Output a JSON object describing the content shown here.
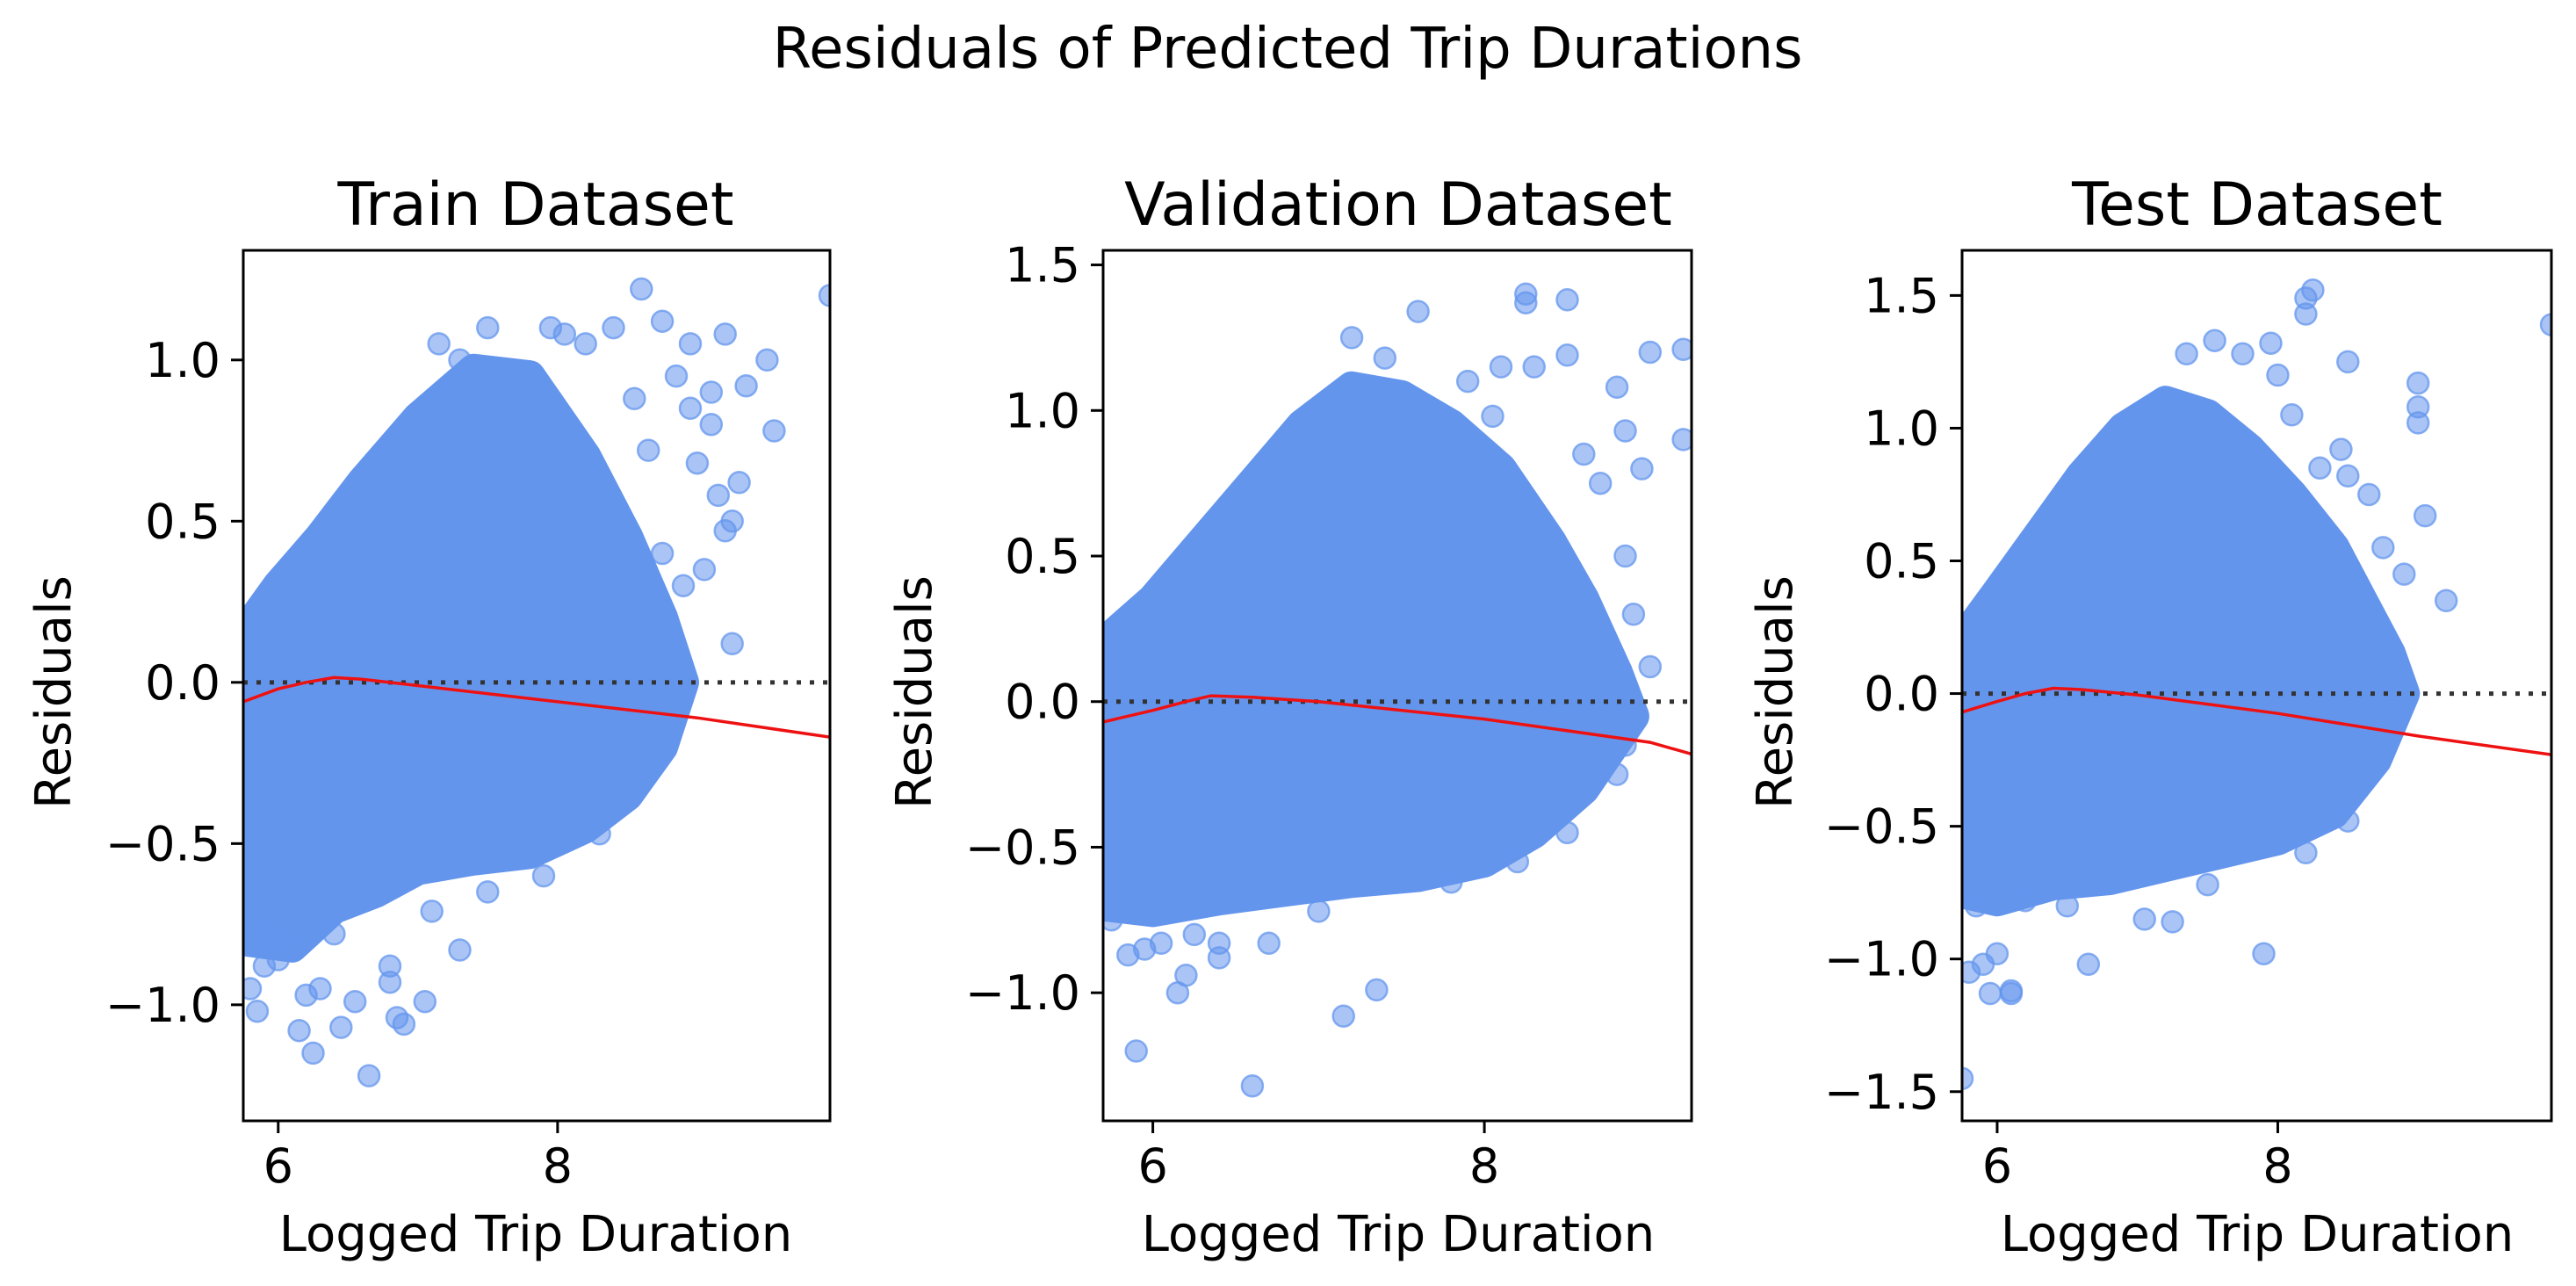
{
  "figure": {
    "title": "Residuals of Predicted Trip Durations",
    "point_color": "#6495ED",
    "trend_color": "#FF0000",
    "zero_line_color": "#333333"
  },
  "chart_data": [
    {
      "type": "scatter",
      "title": "Train Dataset",
      "xlabel": "Logged Trip Duration",
      "ylabel": "Residuals",
      "xlim": [
        5.75,
        9.95
      ],
      "ylim": [
        -1.36,
        1.34
      ],
      "xticks": [
        {
          "v": 6,
          "label": "6"
        },
        {
          "v": 8,
          "label": "8"
        }
      ],
      "yticks": [
        {
          "v": -1.0,
          "label": "−1.0"
        },
        {
          "v": -0.5,
          "label": "−0.5"
        },
        {
          "v": 0.0,
          "label": "0.0"
        },
        {
          "v": 0.5,
          "label": "0.5"
        },
        {
          "v": 1.0,
          "label": "1.0"
        }
      ],
      "bulk_upper": [
        [
          5.75,
          0.15
        ],
        [
          6.0,
          0.3
        ],
        [
          6.3,
          0.45
        ],
        [
          6.6,
          0.62
        ],
        [
          7.0,
          0.82
        ],
        [
          7.4,
          0.97
        ],
        [
          7.8,
          0.95
        ],
        [
          8.2,
          0.7
        ],
        [
          8.5,
          0.45
        ],
        [
          8.75,
          0.2
        ],
        [
          8.9,
          0.0
        ]
      ],
      "bulk_lower": [
        [
          8.9,
          0.0
        ],
        [
          8.75,
          -0.2
        ],
        [
          8.5,
          -0.35
        ],
        [
          8.2,
          -0.45
        ],
        [
          7.8,
          -0.53
        ],
        [
          7.4,
          -0.55
        ],
        [
          7.0,
          -0.58
        ],
        [
          6.7,
          -0.65
        ],
        [
          6.4,
          -0.7
        ],
        [
          6.1,
          -0.82
        ],
        [
          5.75,
          -0.8
        ]
      ],
      "trend": [
        [
          5.75,
          -0.06
        ],
        [
          6.0,
          -0.02
        ],
        [
          6.2,
          0.0
        ],
        [
          6.4,
          0.015
        ],
        [
          6.6,
          0.01
        ],
        [
          7.0,
          -0.01
        ],
        [
          8.0,
          -0.06
        ],
        [
          9.0,
          -0.11
        ],
        [
          9.95,
          -0.17
        ]
      ],
      "outliers": [
        [
          9.5,
          1.0
        ],
        [
          9.35,
          0.92
        ],
        [
          9.2,
          1.08
        ],
        [
          9.1,
          0.9
        ],
        [
          9.55,
          0.78
        ],
        [
          9.3,
          0.62
        ],
        [
          9.25,
          0.5
        ],
        [
          9.15,
          0.58
        ],
        [
          9.0,
          0.68
        ],
        [
          9.1,
          0.8
        ],
        [
          9.2,
          0.47
        ],
        [
          9.25,
          0.12
        ],
        [
          8.95,
          1.05
        ],
        [
          8.75,
          1.12
        ],
        [
          8.6,
          1.22
        ],
        [
          8.4,
          1.1
        ],
        [
          8.2,
          1.05
        ],
        [
          8.85,
          0.95
        ],
        [
          8.95,
          0.85
        ],
        [
          8.55,
          0.88
        ],
        [
          8.65,
          0.72
        ],
        [
          9.05,
          0.35
        ],
        [
          8.9,
          0.3
        ],
        [
          9.95,
          1.2
        ],
        [
          7.5,
          1.1
        ],
        [
          7.95,
          1.1
        ],
        [
          8.05,
          1.08
        ],
        [
          7.15,
          1.05
        ],
        [
          7.3,
          1.0
        ],
        [
          8.75,
          0.4
        ],
        [
          6.65,
          -1.22
        ],
        [
          6.25,
          -1.15
        ],
        [
          6.15,
          -1.08
        ],
        [
          6.45,
          -1.07
        ],
        [
          6.55,
          -0.99
        ],
        [
          6.85,
          -1.04
        ],
        [
          6.9,
          -1.06
        ],
        [
          7.05,
          -0.99
        ],
        [
          7.3,
          -0.83
        ],
        [
          6.8,
          -0.88
        ],
        [
          6.8,
          -0.93
        ],
        [
          6.3,
          -0.95
        ],
        [
          6.2,
          -0.97
        ],
        [
          5.85,
          -1.02
        ],
        [
          5.9,
          -0.88
        ],
        [
          6.0,
          -0.86
        ],
        [
          6.1,
          -0.82
        ],
        [
          5.8,
          -0.95
        ],
        [
          5.95,
          -0.8
        ],
        [
          6.4,
          -0.78
        ],
        [
          7.1,
          -0.71
        ],
        [
          7.5,
          -0.65
        ],
        [
          7.9,
          -0.6
        ],
        [
          8.3,
          -0.47
        ],
        [
          5.8,
          -0.75
        ]
      ]
    },
    {
      "type": "scatter",
      "title": "Validation Dataset",
      "xlabel": "Logged Trip Duration",
      "ylabel": "Residuals",
      "xlim": [
        5.7,
        9.25
      ],
      "ylim": [
        -1.44,
        1.55
      ],
      "xticks": [
        {
          "v": 6,
          "label": "6"
        },
        {
          "v": 8,
          "label": "8"
        }
      ],
      "yticks": [
        {
          "v": -1.0,
          "label": "−1.0"
        },
        {
          "v": -0.5,
          "label": "−0.5"
        },
        {
          "v": 0.0,
          "label": "0.0"
        },
        {
          "v": 0.5,
          "label": "0.5"
        },
        {
          "v": 1.0,
          "label": "1.0"
        },
        {
          "v": 1.5,
          "label": "1.5"
        }
      ],
      "bulk_upper": [
        [
          5.7,
          0.2
        ],
        [
          6.0,
          0.35
        ],
        [
          6.3,
          0.55
        ],
        [
          6.6,
          0.75
        ],
        [
          6.9,
          0.95
        ],
        [
          7.2,
          1.08
        ],
        [
          7.5,
          1.05
        ],
        [
          7.8,
          0.95
        ],
        [
          8.1,
          0.8
        ],
        [
          8.4,
          0.55
        ],
        [
          8.6,
          0.35
        ],
        [
          8.8,
          0.1
        ],
        [
          8.9,
          -0.05
        ]
      ],
      "bulk_lower": [
        [
          8.9,
          -0.05
        ],
        [
          8.6,
          -0.3
        ],
        [
          8.3,
          -0.45
        ],
        [
          8.0,
          -0.55
        ],
        [
          7.6,
          -0.6
        ],
        [
          7.2,
          -0.62
        ],
        [
          6.8,
          -0.65
        ],
        [
          6.4,
          -0.68
        ],
        [
          6.0,
          -0.72
        ],
        [
          5.7,
          -0.7
        ]
      ],
      "trend": [
        [
          5.7,
          -0.07
        ],
        [
          6.0,
          -0.03
        ],
        [
          6.2,
          0.0
        ],
        [
          6.35,
          0.02
        ],
        [
          6.6,
          0.015
        ],
        [
          7.0,
          0.0
        ],
        [
          8.0,
          -0.06
        ],
        [
          9.0,
          -0.14
        ],
        [
          9.25,
          -0.18
        ]
      ],
      "outliers": [
        [
          9.2,
          1.21
        ],
        [
          9.0,
          1.2
        ],
        [
          8.85,
          0.93
        ],
        [
          8.8,
          1.08
        ],
        [
          9.2,
          0.9
        ],
        [
          8.95,
          0.8
        ],
        [
          8.5,
          1.38
        ],
        [
          8.25,
          1.4
        ],
        [
          8.25,
          1.37
        ],
        [
          8.5,
          1.19
        ],
        [
          8.3,
          1.15
        ],
        [
          8.1,
          1.15
        ],
        [
          7.6,
          1.34
        ],
        [
          7.2,
          1.25
        ],
        [
          7.4,
          1.18
        ],
        [
          7.9,
          1.1
        ],
        [
          8.05,
          0.98
        ],
        [
          8.6,
          0.85
        ],
        [
          8.7,
          0.75
        ],
        [
          8.85,
          0.5
        ],
        [
          8.9,
          0.3
        ],
        [
          9.0,
          0.12
        ],
        [
          8.85,
          -0.15
        ],
        [
          8.8,
          -0.25
        ],
        [
          5.9,
          -1.2
        ],
        [
          6.6,
          -1.32
        ],
        [
          7.15,
          -1.08
        ],
        [
          7.35,
          -0.99
        ],
        [
          6.15,
          -1.0
        ],
        [
          6.2,
          -0.94
        ],
        [
          6.4,
          -0.88
        ],
        [
          6.4,
          -0.83
        ],
        [
          6.7,
          -0.83
        ],
        [
          5.85,
          -0.87
        ],
        [
          5.95,
          -0.85
        ],
        [
          6.05,
          -0.83
        ],
        [
          6.25,
          -0.8
        ],
        [
          5.75,
          -0.75
        ],
        [
          7.0,
          -0.72
        ],
        [
          7.8,
          -0.62
        ],
        [
          8.2,
          -0.55
        ],
        [
          8.5,
          -0.45
        ]
      ]
    },
    {
      "type": "scatter",
      "title": "Test Dataset",
      "xlabel": "Logged Trip Duration",
      "ylabel": "Residuals",
      "xlim": [
        5.75,
        9.95
      ],
      "ylim": [
        -1.61,
        1.67
      ],
      "xticks": [
        {
          "v": 6,
          "label": "6"
        },
        {
          "v": 8,
          "label": "8"
        }
      ],
      "yticks": [
        {
          "v": -1.5,
          "label": "−1.5"
        },
        {
          "v": -1.0,
          "label": "−1.0"
        },
        {
          "v": -0.5,
          "label": "−0.5"
        },
        {
          "v": 0.0,
          "label": "0.0"
        },
        {
          "v": 0.5,
          "label": "0.5"
        },
        {
          "v": 1.0,
          "label": "1.0"
        },
        {
          "v": 1.5,
          "label": "1.5"
        }
      ],
      "bulk_upper": [
        [
          5.75,
          0.2
        ],
        [
          6.0,
          0.38
        ],
        [
          6.3,
          0.6
        ],
        [
          6.6,
          0.82
        ],
        [
          6.9,
          1.0
        ],
        [
          7.2,
          1.1
        ],
        [
          7.5,
          1.05
        ],
        [
          7.8,
          0.92
        ],
        [
          8.1,
          0.75
        ],
        [
          8.4,
          0.55
        ],
        [
          8.6,
          0.35
        ],
        [
          8.8,
          0.15
        ],
        [
          8.9,
          0.0
        ]
      ],
      "bulk_lower": [
        [
          8.9,
          0.0
        ],
        [
          8.7,
          -0.25
        ],
        [
          8.4,
          -0.45
        ],
        [
          8.0,
          -0.55
        ],
        [
          7.6,
          -0.6
        ],
        [
          7.2,
          -0.65
        ],
        [
          6.8,
          -0.7
        ],
        [
          6.4,
          -0.72
        ],
        [
          6.0,
          -0.78
        ],
        [
          5.75,
          -0.75
        ]
      ],
      "trend": [
        [
          5.75,
          -0.07
        ],
        [
          6.0,
          -0.03
        ],
        [
          6.2,
          0.0
        ],
        [
          6.4,
          0.02
        ],
        [
          6.6,
          0.015
        ],
        [
          7.0,
          -0.005
        ],
        [
          8.0,
          -0.075
        ],
        [
          9.0,
          -0.16
        ],
        [
          9.95,
          -0.23
        ]
      ],
      "outliers": [
        [
          9.95,
          1.39
        ],
        [
          9.0,
          1.17
        ],
        [
          9.0,
          1.08
        ],
        [
          9.0,
          1.02
        ],
        [
          9.05,
          0.67
        ],
        [
          9.2,
          0.35
        ],
        [
          8.9,
          0.45
        ],
        [
          8.75,
          0.55
        ],
        [
          8.65,
          0.75
        ],
        [
          8.5,
          0.82
        ],
        [
          8.45,
          0.92
        ],
        [
          8.5,
          1.25
        ],
        [
          8.2,
          1.43
        ],
        [
          8.2,
          1.49
        ],
        [
          8.25,
          1.52
        ],
        [
          7.95,
          1.32
        ],
        [
          7.75,
          1.28
        ],
        [
          7.55,
          1.33
        ],
        [
          7.35,
          1.28
        ],
        [
          8.0,
          1.2
        ],
        [
          8.1,
          1.05
        ],
        [
          8.3,
          0.85
        ],
        [
          5.75,
          -1.45
        ],
        [
          5.8,
          -1.05
        ],
        [
          5.95,
          -1.13
        ],
        [
          6.1,
          -1.12
        ],
        [
          6.1,
          -1.13
        ],
        [
          5.9,
          -1.02
        ],
        [
          6.0,
          -0.98
        ],
        [
          6.65,
          -1.02
        ],
        [
          7.9,
          -0.98
        ],
        [
          7.25,
          -0.86
        ],
        [
          7.05,
          -0.85
        ],
        [
          6.5,
          -0.8
        ],
        [
          5.85,
          -0.8
        ],
        [
          6.2,
          -0.78
        ],
        [
          7.5,
          -0.72
        ],
        [
          8.2,
          -0.6
        ],
        [
          8.5,
          -0.48
        ]
      ]
    }
  ]
}
